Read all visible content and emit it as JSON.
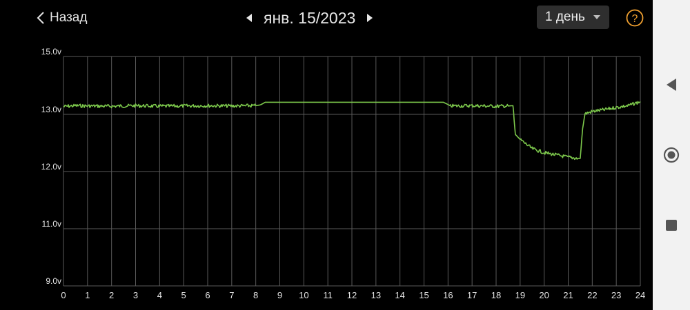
{
  "header": {
    "back_label": "Назад",
    "date_label": "янв. 15/2023",
    "range_label": "1 день"
  },
  "icons": {
    "back": "chevron-left-icon",
    "prev_date": "triangle-left-icon",
    "next_date": "triangle-right-icon",
    "dropdown": "caret-down-icon",
    "help": "question-circle-icon",
    "nav_back": "triangle-back-icon",
    "nav_home": "circle-home-icon",
    "nav_recents": "square-recents-icon"
  },
  "colors": {
    "background": "#000000",
    "line": "#7dc94c",
    "grid": "#5a5a5a",
    "help_accent": "#f0a030",
    "nav_bar": "#f2f2f2",
    "nav_icons": "#555555"
  },
  "chart_data": {
    "type": "line",
    "title": "",
    "xlabel": "",
    "ylabel": "",
    "x_ticks": [
      "0",
      "1",
      "2",
      "3",
      "4",
      "5",
      "6",
      "7",
      "8",
      "9",
      "10",
      "11",
      "12",
      "13",
      "14",
      "15",
      "16",
      "17",
      "18",
      "19",
      "20",
      "21",
      "22",
      "23",
      "24"
    ],
    "y_ticks": [
      {
        "value": 9.0,
        "label": "9.0v"
      },
      {
        "value": 11.0,
        "label": "11.0v"
      },
      {
        "value": 12.0,
        "label": "12.0v"
      },
      {
        "value": 13.0,
        "label": "13.0v"
      },
      {
        "value": 15.0,
        "label": "15.0v"
      }
    ],
    "grid": true,
    "series": [
      {
        "x": [
          0,
          0.5,
          1,
          2,
          3,
          4,
          5,
          6,
          7,
          8,
          8.2,
          8.4,
          9,
          10,
          11,
          12,
          13,
          14,
          15,
          15.8,
          16.0,
          16.1,
          17,
          18,
          18.5,
          18.7,
          18.75,
          18.8,
          19,
          19.5,
          20,
          20.5,
          21,
          21.4,
          21.5,
          21.6,
          21.7,
          22,
          22.5,
          23,
          23.5,
          24
        ],
        "y": [
          13.27,
          13.3,
          13.29,
          13.28,
          13.3,
          13.28,
          13.29,
          13.3,
          13.29,
          13.3,
          13.33,
          13.42,
          13.42,
          13.42,
          13.42,
          13.42,
          13.42,
          13.42,
          13.42,
          13.42,
          13.34,
          13.29,
          13.3,
          13.28,
          13.29,
          13.3,
          12.9,
          12.65,
          12.56,
          12.4,
          12.33,
          12.29,
          12.25,
          12.23,
          12.23,
          12.75,
          13.02,
          13.1,
          13.16,
          13.24,
          13.3,
          13.44
        ]
      }
    ]
  }
}
